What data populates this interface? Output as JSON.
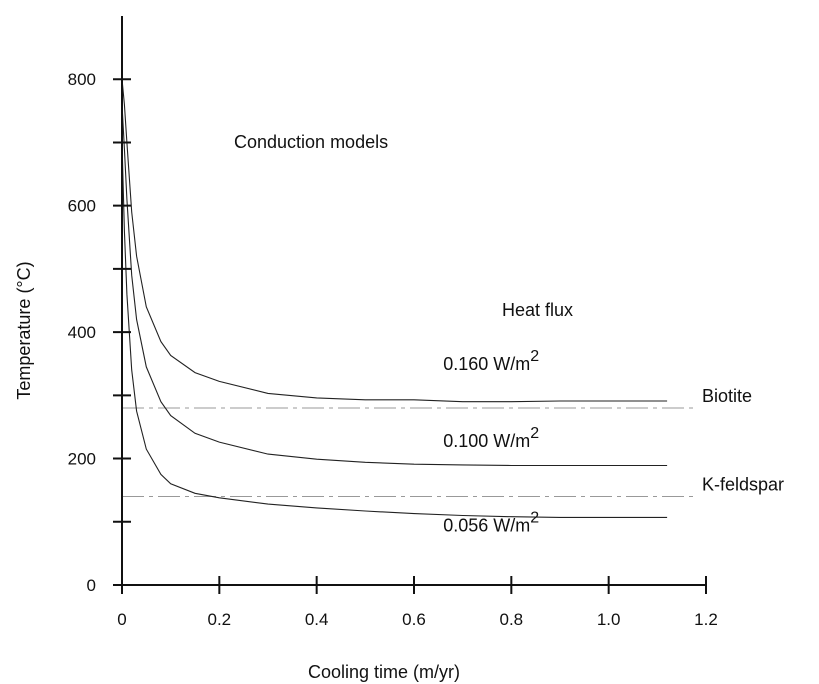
{
  "chart_data": {
    "type": "line",
    "title": "",
    "xlabel": "Cooling time (m/yr)",
    "ylabel": "Temperature  (°C)",
    "xlim": [
      0,
      1.2
    ],
    "ylim": [
      0,
      900
    ],
    "x_ticks": [
      0,
      0.2,
      0.4,
      0.6,
      0.8,
      1.0,
      1.2
    ],
    "x_tick_labels": [
      "0",
      "0.2",
      "0.4",
      "0.6",
      "0.8",
      "1.0",
      "1.2"
    ],
    "y_ticks": [
      0,
      100,
      200,
      300,
      400,
      500,
      600,
      700,
      800
    ],
    "y_tick_labels": [
      "0",
      "",
      "200",
      "",
      "400",
      "",
      "600",
      "",
      "800"
    ],
    "grid": false,
    "legend": "none",
    "annotations": {
      "model_label": "Conduction models",
      "heat_flux_label": "Heat flux"
    },
    "series": [
      {
        "name": "0.160 W/m2",
        "label_value": "0.160 W/m",
        "label_exp": "2",
        "label_at": [
          0.66,
          340
        ],
        "x": [
          0,
          0.005,
          0.01,
          0.02,
          0.03,
          0.05,
          0.08,
          0.1,
          0.15,
          0.2,
          0.3,
          0.4,
          0.5,
          0.6,
          0.7,
          0.8,
          0.9,
          1.0,
          1.12
        ],
        "y": [
          800,
          760,
          700,
          590,
          520,
          440,
          385,
          363,
          336,
          322,
          303,
          296,
          293,
          293,
          290,
          290,
          291,
          291,
          291
        ]
      },
      {
        "name": "0.100 W/m2",
        "label_value": "0.100 W/m",
        "label_exp": "2",
        "label_at": [
          0.66,
          218
        ],
        "x": [
          0,
          0.005,
          0.01,
          0.02,
          0.03,
          0.05,
          0.08,
          0.1,
          0.15,
          0.2,
          0.3,
          0.4,
          0.5,
          0.6,
          0.7,
          0.8,
          0.9,
          1.0,
          1.12
        ],
        "y": [
          760,
          690,
          610,
          490,
          420,
          345,
          290,
          268,
          240,
          226,
          207,
          199,
          194,
          191,
          190,
          189,
          189,
          189,
          189
        ]
      },
      {
        "name": "0.056 W/m2",
        "label_value": "0.056 W/m",
        "label_exp": "2",
        "label_at": [
          0.66,
          85
        ],
        "x": [
          0,
          0.005,
          0.01,
          0.02,
          0.03,
          0.05,
          0.08,
          0.1,
          0.15,
          0.2,
          0.3,
          0.4,
          0.5,
          0.6,
          0.7,
          0.8,
          0.9,
          1.0,
          1.12
        ],
        "y": [
          700,
          560,
          460,
          340,
          275,
          215,
          175,
          160,
          145,
          138,
          128,
          122,
          117,
          113,
          110,
          108,
          107,
          107,
          107
        ]
      }
    ],
    "reference_lines": [
      {
        "name": "Biotite",
        "y": 280,
        "label": "Biotite"
      },
      {
        "name": "K-feldspar",
        "y": 140,
        "label": "K-feldspar"
      }
    ]
  }
}
